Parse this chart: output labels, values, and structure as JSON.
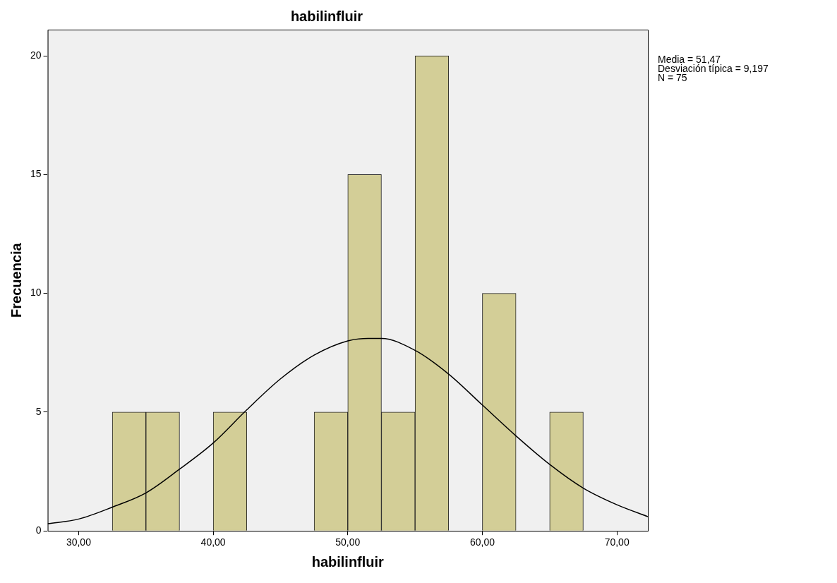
{
  "chart_data": {
    "type": "histogram",
    "title": "habilinfluir",
    "xlabel": "habilinfluir",
    "ylabel": "Frecuencia",
    "bins": [
      32.5,
      35,
      37.5,
      40,
      42.5,
      45,
      47.5,
      50,
      52.5,
      55,
      57.5,
      60,
      62.5,
      65,
      67.5
    ],
    "series": [
      {
        "type": "histogram",
        "color": "#d3ce97",
        "values": [
          5,
          5,
          0,
          5,
          0,
          0,
          5,
          15,
          5,
          20,
          0,
          10,
          0,
          5
        ]
      },
      {
        "type": "line",
        "color": "#000000",
        "x": [
          27.7,
          30,
          32.5,
          35,
          37.5,
          40,
          42.5,
          45,
          47.5,
          50,
          51.5,
          52.5,
          55,
          57.5,
          60,
          62.5,
          65,
          67.5,
          70,
          72.3
        ],
        "values": [
          0.3,
          0.5,
          1.0,
          1.6,
          2.6,
          3.7,
          5.1,
          6.4,
          7.4,
          8.0,
          8.1,
          8.1,
          7.6,
          6.6,
          5.3,
          4.0,
          2.8,
          1.8,
          1.1,
          0.6
        ]
      }
    ],
    "xlim": [
      27.7,
      72.3
    ],
    "xticks": [
      {
        "value": 30,
        "label": "30,00"
      },
      {
        "value": 40,
        "label": "40,00"
      },
      {
        "value": 50,
        "label": "50,00"
      },
      {
        "value": 60,
        "label": "60,00"
      },
      {
        "value": 70,
        "label": "70,00"
      }
    ],
    "ylim": [
      0,
      21.1
    ],
    "yticks": [
      0,
      5,
      10,
      15,
      20
    ],
    "grid": false,
    "legend": false,
    "marker": "none",
    "annotations": [
      "Media = 51,47",
      "Desviación típica = 9,197",
      "N = 75"
    ]
  }
}
